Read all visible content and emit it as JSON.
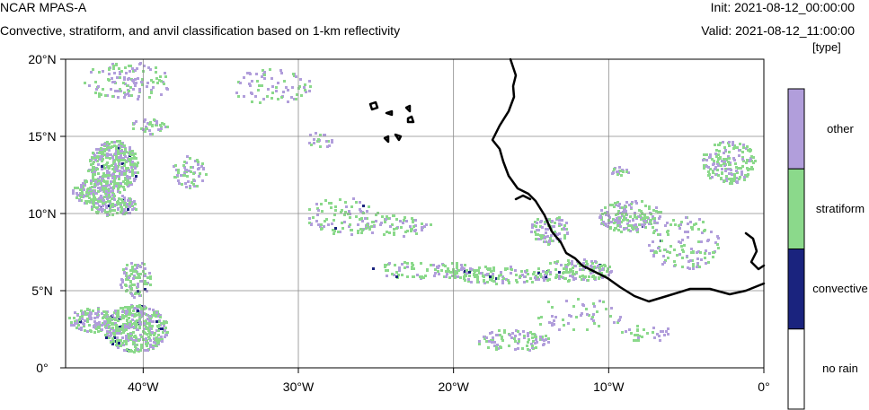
{
  "header": {
    "title": "NCAR MPAS-A",
    "subtitle": "Convective, stratiform, and anvil classification based on 1-km reflectivity",
    "init": "Init: 2021-08-12_00:00:00",
    "valid": "Valid: 2021-08-12_11:00:00",
    "units": "[type]"
  },
  "map": {
    "lon_range": [
      -45,
      0
    ],
    "lat_range": [
      0,
      20
    ],
    "x_ticks": [
      {
        "lon": -40,
        "label": "40°W"
      },
      {
        "lon": -30,
        "label": "30°W"
      },
      {
        "lon": -20,
        "label": "20°W"
      },
      {
        "lon": -10,
        "label": "10°W"
      },
      {
        "lon": 0,
        "label": "0°"
      }
    ],
    "y_ticks": [
      {
        "lat": 20,
        "label": "20°N"
      },
      {
        "lat": 15,
        "label": "15°N"
      },
      {
        "lat": 10,
        "label": "10°N"
      },
      {
        "lat": 5,
        "label": "5°N"
      },
      {
        "lat": 0,
        "label": "0°"
      }
    ],
    "gridlines": true,
    "coastline_color": "#000000"
  },
  "legend": {
    "categories": [
      {
        "label": "other",
        "color": "#b19edb"
      },
      {
        "label": "stratiform",
        "color": "#8bd98b"
      },
      {
        "label": "convective",
        "color": "#1a237e"
      },
      {
        "label": "no rain",
        "color": "#ffffff"
      }
    ]
  }
}
